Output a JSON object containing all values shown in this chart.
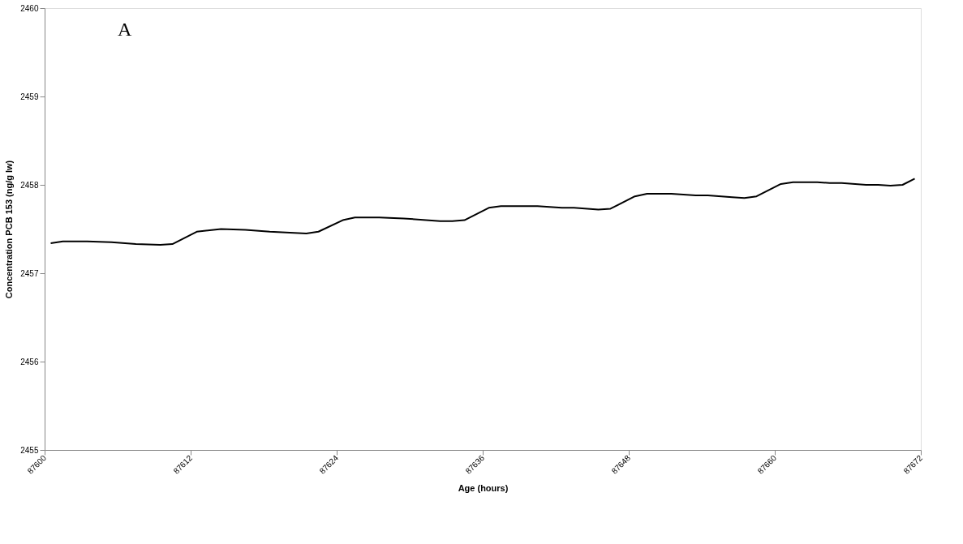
{
  "chart_data": {
    "type": "line",
    "xlabel": "Age (hours)",
    "ylabel": "Concentration PCB 153 (ng/g lw)",
    "annotations": [
      "A"
    ],
    "x": [
      87600.5,
      87601.5,
      87603.5,
      87605.5,
      87607.5,
      87609.5,
      87610.5,
      87612.5,
      87614.5,
      87616.5,
      87618.5,
      87621.5,
      87622.5,
      87624.5,
      87625.5,
      87627.5,
      87629.5,
      87632.5,
      87633.5,
      87634.5,
      87636.5,
      87637.5,
      87640.5,
      87642.5,
      87643.5,
      87645.5,
      87646.5,
      87648.5,
      87649.5,
      87651.5,
      87653.5,
      87654.5,
      87656.5,
      87657.5,
      87658.5,
      87660.5,
      87661.5,
      87663.5,
      87664.5,
      87665.5,
      87667.5,
      87668.5,
      87669.5,
      87670.5,
      87671.5
    ],
    "series": [
      {
        "color": "#000000",
        "values": [
          2457.34,
          2457.36,
          2457.36,
          2457.35,
          2457.33,
          2457.32,
          2457.33,
          2457.47,
          2457.5,
          2457.49,
          2457.47,
          2457.45,
          2457.47,
          2457.6,
          2457.63,
          2457.63,
          2457.62,
          2457.59,
          2457.59,
          2457.6,
          2457.74,
          2457.76,
          2457.76,
          2457.74,
          2457.74,
          2457.72,
          2457.73,
          2457.87,
          2457.9,
          2457.9,
          2457.88,
          2457.88,
          2457.86,
          2457.85,
          2457.87,
          2458.01,
          2458.03,
          2458.03,
          2458.02,
          2458.02,
          2458.0,
          2458.0,
          2457.99,
          2458.0,
          2458.07
        ]
      }
    ],
    "xlim": [
      87600,
      87672
    ],
    "xticks": [
      87600,
      87612,
      87624,
      87636,
      87648,
      87660,
      87672
    ],
    "ylim": [
      2455,
      2460
    ],
    "yticks": [
      2455,
      2456,
      2457,
      2458,
      2459,
      2460
    ],
    "grid": false,
    "legend": false,
    "marker": "none",
    "line_style": "solid"
  }
}
